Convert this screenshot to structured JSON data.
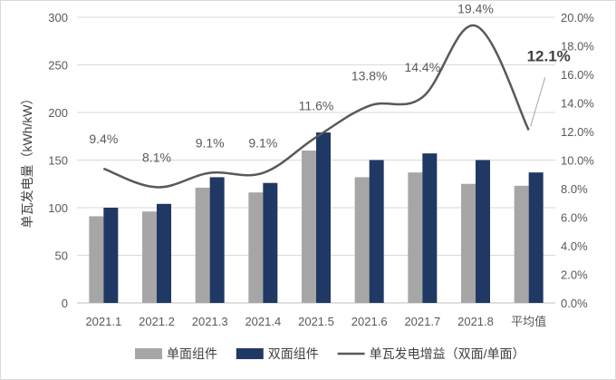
{
  "chart_data": {
    "type": "bar",
    "categories": [
      "2021.1",
      "2021.2",
      "2021.3",
      "2021.4",
      "2021.5",
      "2021.6",
      "2021.7",
      "2021.8",
      "平均值"
    ],
    "series": [
      {
        "name": "单面组件",
        "type": "bar",
        "axis": "left",
        "color": "#a6a6a6",
        "values": [
          91,
          96,
          121,
          116,
          160,
          132,
          137,
          125,
          123
        ]
      },
      {
        "name": "双面组件",
        "type": "bar",
        "axis": "left",
        "color": "#203864",
        "values": [
          100,
          104,
          132,
          126,
          179,
          150,
          157,
          150,
          137
        ]
      },
      {
        "name": "单瓦发电增益（双面/单面）",
        "type": "line",
        "axis": "right",
        "color": "#595959",
        "values": [
          9.4,
          8.1,
          9.1,
          9.1,
          11.6,
          13.8,
          14.4,
          19.4,
          12.1
        ],
        "labels": [
          "9.4%",
          "8.1%",
          "9.1%",
          "9.1%",
          "11.6%",
          "13.8%",
          "14.4%",
          "19.4%",
          "12.1%"
        ]
      }
    ],
    "ylabel": "单瓦发电量（kWh/kW）",
    "ylim": [
      0,
      300
    ],
    "yticks": [
      "0",
      "50",
      "100",
      "150",
      "200",
      "250",
      "300"
    ],
    "y2lim": [
      0,
      20
    ],
    "y2ticks": [
      "0.0%",
      "2.0%",
      "4.0%",
      "6.0%",
      "8.0%",
      "10.0%",
      "12.0%",
      "14.0%",
      "16.0%",
      "18.0%",
      "20.0%"
    ],
    "grid": true,
    "legend_position": "bottom",
    "highlight": {
      "category": "平均值",
      "label": "12.1%"
    }
  }
}
